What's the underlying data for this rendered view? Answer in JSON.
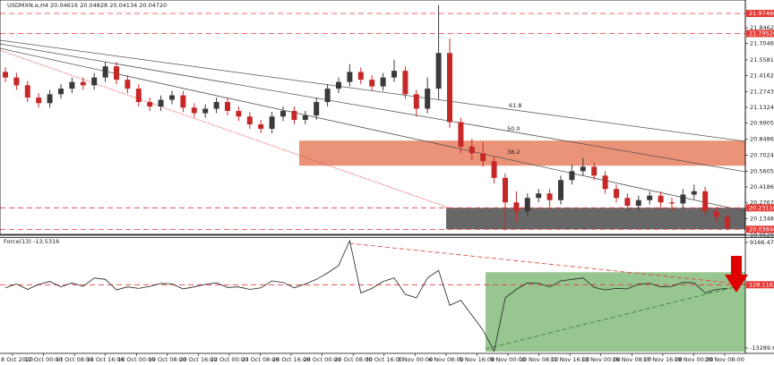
{
  "chart_data": [
    {
      "type": "candlestick",
      "title": "USDMXN.e,H4  20.04616 20.04828 20.04134 20.04720",
      "categories": [
        null,
        null,
        null,
        null,
        null,
        null,
        null,
        null,
        null,
        null,
        null,
        null,
        null,
        null,
        null,
        null,
        null,
        null,
        null,
        null,
        null,
        null,
        null,
        null,
        null,
        null,
        null,
        null,
        null,
        null,
        null,
        null,
        null,
        null,
        null,
        null,
        null,
        null,
        null,
        null,
        null,
        null,
        null,
        null,
        null,
        null,
        null,
        null,
        null,
        null,
        null,
        null,
        null,
        null,
        null,
        null,
        null,
        null,
        null,
        null,
        null,
        null,
        null,
        null,
        null,
        null
      ],
      "open": [
        21.45,
        21.4,
        21.33,
        21.22,
        21.17,
        21.25,
        21.3,
        21.36,
        21.33,
        21.4,
        21.5,
        21.38,
        21.3,
        21.18,
        21.14,
        21.2,
        21.24,
        21.13,
        21.08,
        21.12,
        21.18,
        21.1,
        21.05,
        20.98,
        20.94,
        21.05,
        21.1,
        21.02,
        21.06,
        21.18,
        21.3,
        21.36,
        21.45,
        21.38,
        21.32,
        21.4,
        21.46,
        21.25,
        21.12,
        21.3,
        21.62,
        21.0,
        20.78,
        20.72,
        20.65,
        20.5,
        20.28,
        20.2,
        20.32,
        20.36,
        20.3,
        20.48,
        20.56,
        20.6,
        20.52,
        20.4,
        20.32,
        20.25,
        20.3,
        20.34,
        20.28,
        20.27,
        20.35,
        20.38,
        20.2,
        20.15
      ],
      "high": [
        21.49,
        21.44,
        21.37,
        21.26,
        21.29,
        21.34,
        21.4,
        21.4,
        21.44,
        21.54,
        21.54,
        21.42,
        21.34,
        21.22,
        21.24,
        21.28,
        21.28,
        21.17,
        21.16,
        21.22,
        21.22,
        21.14,
        21.09,
        21.02,
        21.09,
        21.14,
        21.14,
        21.1,
        21.22,
        21.34,
        21.4,
        21.52,
        21.49,
        21.42,
        21.44,
        21.56,
        21.5,
        21.29,
        21.4,
        22.05,
        21.75,
        21.04,
        20.85,
        20.82,
        20.69,
        20.54,
        20.38,
        20.36,
        20.4,
        20.4,
        20.52,
        20.62,
        20.68,
        20.64,
        20.56,
        20.44,
        20.36,
        20.34,
        20.38,
        20.38,
        20.32,
        20.4,
        20.44,
        20.42,
        20.24,
        20.19
      ],
      "low": [
        21.36,
        21.29,
        21.18,
        21.13,
        21.13,
        21.21,
        21.26,
        21.29,
        21.29,
        21.36,
        21.34,
        21.26,
        21.14,
        21.1,
        21.1,
        21.16,
        21.09,
        21.04,
        21.04,
        21.08,
        21.06,
        21.01,
        20.94,
        20.9,
        20.9,
        21.01,
        20.98,
        20.98,
        21.02,
        21.14,
        21.26,
        21.32,
        21.34,
        21.28,
        21.28,
        21.36,
        21.21,
        21.05,
        21.08,
        21.2,
        20.95,
        20.72,
        20.66,
        20.6,
        20.45,
        20.03,
        20.1,
        20.16,
        20.28,
        20.24,
        20.26,
        20.44,
        20.52,
        20.48,
        20.36,
        20.28,
        20.18,
        20.21,
        20.26,
        20.22,
        20.2,
        20.23,
        20.31,
        20.16,
        20.1,
        20.03
      ],
      "close": [
        21.4,
        21.33,
        21.22,
        21.17,
        21.25,
        21.3,
        21.36,
        21.33,
        21.4,
        21.5,
        21.38,
        21.3,
        21.18,
        21.14,
        21.2,
        21.24,
        21.13,
        21.08,
        21.12,
        21.18,
        21.1,
        21.05,
        20.98,
        20.94,
        21.05,
        21.1,
        21.02,
        21.06,
        21.18,
        21.3,
        21.36,
        21.45,
        21.38,
        21.32,
        21.4,
        21.46,
        21.25,
        21.12,
        21.3,
        21.62,
        21.0,
        20.78,
        20.72,
        20.65,
        20.5,
        20.28,
        20.2,
        20.32,
        20.36,
        20.3,
        20.48,
        20.56,
        20.6,
        20.52,
        20.4,
        20.32,
        20.25,
        20.3,
        20.34,
        20.28,
        20.27,
        20.35,
        20.38,
        20.2,
        20.15,
        20.05
      ],
      "up_color": "#3a3a3a",
      "down_color": "#c62828",
      "ylim": [
        19.9529,
        22.071
      ],
      "yticks": [
        {
          "value": 21.8462,
          "label": "21.84620"
        },
        {
          "value": 21.7046,
          "label": "21.70460"
        },
        {
          "value": 21.5581,
          "label": "21.55810"
        },
        {
          "value": 21.4162,
          "label": "21.41620"
        },
        {
          "value": 21.2743,
          "label": "21.27430"
        },
        {
          "value": 21.1324,
          "label": "21.13240"
        },
        {
          "value": 20.9905,
          "label": "20.99050"
        },
        {
          "value": 20.8486,
          "label": "20.84860"
        },
        {
          "value": 20.7024,
          "label": "20.70240"
        },
        {
          "value": 20.5605,
          "label": "20.56050"
        },
        {
          "value": 20.4186,
          "label": "20.41860"
        },
        {
          "value": 20.2767,
          "label": "20.27670"
        },
        {
          "value": 20.1348,
          "label": "20.13480"
        },
        {
          "value": 19.9529,
          "label": "19.95290"
        }
      ],
      "levels": [
        {
          "value": 21.9746,
          "label": "21.97460"
        },
        {
          "value": 21.7952,
          "label": "21.79520"
        },
        {
          "value": 20.2311,
          "label": "20.23110"
        },
        {
          "value": 20.0384,
          "label": "20.03840"
        }
      ],
      "level_color": "#e53935",
      "zones": [
        {
          "range": [
            20.609,
            20.834
          ],
          "color": "#e8876a"
        },
        {
          "range": [
            20.0384,
            20.2311
          ],
          "color": "#5f5f5f"
        }
      ],
      "fib_labels": [
        "61.8",
        "50.0",
        "38.2"
      ],
      "x_labels": [
        "8 Oct 2020",
        "12 Oct 00:00",
        "13 Oct 08:00",
        "14 Oct 16:00",
        "16 Oct 00:00",
        "19 Oct 08:00",
        "20 Oct 16:00",
        "22 Oct 00:00",
        "23 Oct 08:00",
        "26 Oct 16:00",
        "28 Oct 00:00",
        "29 Oct 08:00",
        "30 Oct 16:00",
        "3 Nov 00:00",
        "4 Nov 08:00",
        "5 Nov 16:00",
        "9 Nov 00:00",
        "10 Nov 08:00",
        "11 Nov 16:00",
        "13 Nov 00:00",
        "16 Nov 08:00",
        "17 Nov 16:00",
        "19 Nov 00:00",
        "20 Nov 08:00"
      ]
    },
    {
      "type": "line",
      "title": "Force(13) -13.5316",
      "color": "#222222",
      "values": [
        -500,
        300,
        -800,
        200,
        800,
        -300,
        500,
        -200,
        1500,
        1200,
        -900,
        -300,
        -600,
        -200,
        400,
        300,
        -700,
        -300,
        200,
        500,
        -400,
        -300,
        -800,
        -500,
        900,
        600,
        -500,
        300,
        1200,
        2500,
        4000,
        9000,
        -1500,
        -600,
        800,
        1500,
        -1800,
        -2500,
        1500,
        3000,
        -4000,
        -3000,
        -6000,
        -9000,
        -13200,
        -2500,
        -800,
        500,
        400,
        -300,
        900,
        1200,
        1500,
        -400,
        -900,
        -600,
        -700,
        300,
        400,
        -300,
        -200,
        600,
        500,
        -1500,
        -800,
        -600
      ],
      "ylim": [
        -13289.652,
        9166.4742
      ],
      "yticks": [
        9166.4742,
        -13289.652
      ],
      "levels": [
        {
          "value": 128.1163,
          "label": "128.1163"
        }
      ],
      "level_color": "#e53935",
      "zones": [
        {
          "range": [
            -13289.652,
            2647
          ],
          "color": "#8cc084"
        }
      ]
    }
  ]
}
